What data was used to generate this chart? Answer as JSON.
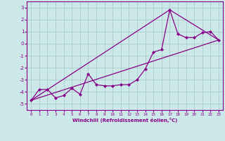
{
  "title": "",
  "xlabel": "Windchill (Refroidissement éolien,°C)",
  "bg_color": "#cce8e8",
  "grid_color": "#b0d0d0",
  "line_color": "#880088",
  "xlim": [
    -0.5,
    23.5
  ],
  "ylim": [
    -5.5,
    3.5
  ],
  "xticks": [
    0,
    1,
    2,
    3,
    4,
    5,
    6,
    7,
    8,
    9,
    10,
    11,
    12,
    13,
    14,
    15,
    16,
    17,
    18,
    19,
    20,
    21,
    22,
    23
  ],
  "yticks": [
    -5,
    -4,
    -3,
    -2,
    -1,
    0,
    1,
    2,
    3
  ],
  "data_x": [
    0,
    1,
    2,
    3,
    4,
    5,
    6,
    7,
    8,
    9,
    10,
    11,
    12,
    13,
    14,
    15,
    16,
    17,
    18,
    19,
    20,
    21,
    22,
    23
  ],
  "data_y": [
    -4.7,
    -3.8,
    -3.8,
    -4.5,
    -4.3,
    -3.7,
    -4.2,
    -2.5,
    -3.4,
    -3.5,
    -3.5,
    -3.4,
    -3.4,
    -3.0,
    -2.1,
    -0.7,
    -0.5,
    2.8,
    0.8,
    0.5,
    0.5,
    0.9,
    1.0,
    0.3
  ],
  "line1_x": [
    0,
    23
  ],
  "line1_y": [
    -4.7,
    0.3
  ],
  "line2_x": [
    0,
    17,
    23
  ],
  "line2_y": [
    -4.7,
    2.8,
    0.3
  ]
}
